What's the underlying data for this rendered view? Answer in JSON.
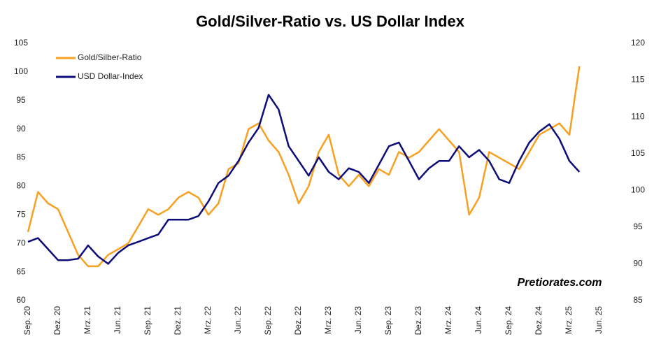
{
  "chart_data": {
    "type": "line",
    "title": "Gold/Silver-Ratio vs. US Dollar Index",
    "annotation": "Pretiorates.com",
    "categories": [
      "Sep. 20",
      null,
      null,
      "Dez. 20",
      null,
      null,
      "Mrz. 21",
      null,
      null,
      "Jun. 21",
      null,
      null,
      "Sep. 21",
      null,
      null,
      "Dez. 21",
      null,
      null,
      "Mrz. 22",
      null,
      null,
      "Jun. 22",
      null,
      null,
      "Sep. 22",
      null,
      null,
      "Dez. 22",
      null,
      null,
      "Mrz. 23",
      null,
      null,
      "Jun. 23",
      null,
      null,
      "Sep. 23",
      null,
      null,
      "Dez. 23",
      null,
      null,
      "Mrz. 24",
      null,
      null,
      "Jun. 24",
      null,
      null,
      "Sep. 24",
      null,
      null,
      "Dez. 24",
      null,
      null,
      "Mrz. 25",
      null,
      null,
      "Jun. 25"
    ],
    "series": [
      {
        "name": "Gold/Silber-Ratio",
        "color": "#f7a021",
        "values": [
          72,
          79,
          77,
          76,
          72,
          68,
          66,
          66,
          68,
          69,
          70,
          73,
          76,
          75,
          76,
          78,
          79,
          78,
          75,
          77,
          83,
          84,
          90,
          91,
          88,
          86,
          82,
          77,
          80,
          86,
          89,
          82,
          80,
          82,
          80,
          83,
          82,
          86,
          85,
          86,
          88,
          90,
          88,
          86,
          75,
          78,
          86,
          85,
          84,
          83,
          86,
          89,
          90,
          91,
          89,
          101,
          null,
          null
        ]
      },
      {
        "name": "USD Dollar-Index",
        "color": "#0d0d7a",
        "axis": "y2",
        "values": [
          93,
          93.5,
          92,
          90.5,
          90.5,
          90.7,
          92.5,
          91,
          90,
          91.5,
          92.5,
          93,
          93.5,
          94,
          96,
          96,
          96,
          96.5,
          98.5,
          101,
          102,
          104,
          106.5,
          108.5,
          113,
          111,
          106,
          104,
          102,
          104.5,
          102.5,
          101.5,
          103,
          102.5,
          101,
          103.5,
          106,
          106.5,
          104,
          101.5,
          103,
          104,
          104,
          106,
          104.5,
          105.5,
          104,
          101.5,
          101,
          104,
          106.5,
          108,
          109,
          107,
          104,
          102.5,
          null,
          null
        ]
      }
    ],
    "ylim": [
      60,
      105
    ],
    "yticks": [
      60,
      65,
      70,
      75,
      80,
      85,
      90,
      95,
      100,
      105
    ],
    "y2lim": [
      85,
      120
    ],
    "y2ticks": [
      85,
      90,
      95,
      100,
      105,
      110,
      115,
      120
    ],
    "legend": "upper left"
  }
}
